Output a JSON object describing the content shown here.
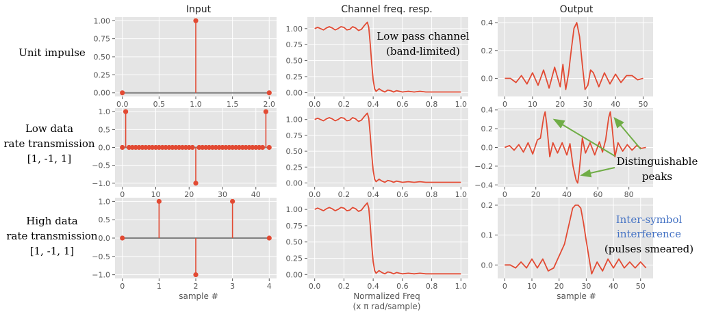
{
  "columns": {
    "input": "Input",
    "channel": "Channel freq. resp.",
    "output": "Output"
  },
  "rows": [
    {
      "label": [
        "Unit impulse"
      ]
    },
    {
      "label": [
        "Low data",
        "rate transmission",
        "[1, -1, 1]"
      ]
    },
    {
      "label": [
        "High data",
        "rate transmission",
        "[1, -1, 1]"
      ]
    }
  ],
  "xlabels": {
    "input": "sample #",
    "channel": [
      "Normalized Freq",
      "(x π rad/sample)"
    ],
    "output": "sample #"
  },
  "annotations": {
    "lowpass": [
      "Low pass channel",
      "(band-limited)"
    ],
    "peaks": [
      "Distinguishable",
      "peaks"
    ],
    "isi": [
      "Inter-symbol",
      "interference"
    ],
    "smeared": "(pulses smeared)"
  },
  "colors": {
    "line": "#e24a33",
    "baseline": "#808080",
    "panel": "#e5e5e5",
    "grid": "#ffffff",
    "arrow": "#70ad47",
    "isi_text": "#4472c4"
  },
  "chart_data": [
    {
      "type": "stem",
      "row": 0,
      "col": 0,
      "x": [
        0,
        1,
        2
      ],
      "y": [
        0,
        1,
        0
      ],
      "xlim": [
        -0.1,
        2.1
      ],
      "ylim": [
        -0.05,
        1.05
      ],
      "xticks": [
        0.0,
        0.5,
        1.0,
        1.5,
        2.0
      ],
      "xtick_labels": [
        "0.0",
        "0.5",
        "1.0",
        "1.5",
        "2.0"
      ],
      "yticks": [
        0.0,
        0.25,
        0.5,
        0.75,
        1.0
      ],
      "ytick_labels": [
        "0.00",
        "0.25",
        "0.50",
        "0.75",
        "1.00"
      ]
    },
    {
      "type": "stem",
      "row": 1,
      "col": 0,
      "x": [
        0,
        1,
        2,
        3,
        4,
        5,
        6,
        7,
        8,
        9,
        10,
        11,
        12,
        13,
        14,
        15,
        16,
        17,
        18,
        19,
        20,
        21,
        22,
        23,
        24,
        25,
        26,
        27,
        28,
        29,
        30,
        31,
        32,
        33,
        34,
        35,
        36,
        37,
        38,
        39,
        40,
        41,
        42,
        43,
        44
      ],
      "y": [
        0,
        1,
        0,
        0,
        0,
        0,
        0,
        0,
        0,
        0,
        0,
        0,
        0,
        0,
        0,
        0,
        0,
        0,
        0,
        0,
        0,
        0,
        -1,
        0,
        0,
        0,
        0,
        0,
        0,
        0,
        0,
        0,
        0,
        0,
        0,
        0,
        0,
        0,
        0,
        0,
        0,
        0,
        0,
        1,
        0
      ],
      "xlim": [
        -2.2,
        46.2
      ],
      "ylim": [
        -1.1,
        1.1
      ],
      "xticks": [
        0,
        10,
        20,
        30,
        40
      ],
      "xtick_labels": [
        "0",
        "10",
        "20",
        "30",
        "40"
      ],
      "yticks": [
        -1.0,
        -0.5,
        0.0,
        0.5,
        1.0
      ],
      "ytick_labels": [
        "−1.0",
        "−0.5",
        "0.0",
        "0.5",
        "1.0"
      ]
    },
    {
      "type": "stem",
      "row": 2,
      "col": 0,
      "x": [
        0,
        1,
        2,
        3,
        4
      ],
      "y": [
        0,
        1,
        -1,
        1,
        0
      ],
      "xlim": [
        -0.2,
        4.2
      ],
      "ylim": [
        -1.1,
        1.1
      ],
      "xticks": [
        0,
        1,
        2,
        3,
        4
      ],
      "xtick_labels": [
        "0",
        "1",
        "2",
        "3",
        "4"
      ],
      "yticks": [
        -1.0,
        -0.5,
        0.0,
        0.5,
        1.0
      ],
      "ytick_labels": [
        "−1.0",
        "−0.5",
        "0.0",
        "0.5",
        "1.0"
      ]
    },
    {
      "type": "line",
      "row": 0,
      "col": 1,
      "x": [
        0,
        0.02,
        0.04,
        0.06,
        0.08,
        0.1,
        0.12,
        0.14,
        0.16,
        0.18,
        0.2,
        0.22,
        0.24,
        0.26,
        0.28,
        0.3,
        0.32,
        0.34,
        0.36,
        0.37,
        0.38,
        0.39,
        0.4,
        0.41,
        0.42,
        0.44,
        0.46,
        0.48,
        0.5,
        0.52,
        0.54,
        0.56,
        0.58,
        0.6,
        0.64,
        0.68,
        0.72,
        0.76,
        0.8,
        0.84,
        0.88,
        0.92,
        0.96,
        1.0
      ],
      "y": [
        1.0,
        1.02,
        1.0,
        0.98,
        1.01,
        1.03,
        1.01,
        0.98,
        1.0,
        1.03,
        1.02,
        0.98,
        0.99,
        1.03,
        1.01,
        0.97,
        0.99,
        1.05,
        1.1,
        1.02,
        0.75,
        0.45,
        0.2,
        0.06,
        0.02,
        0.06,
        0.03,
        0.01,
        0.04,
        0.03,
        0.01,
        0.03,
        0.02,
        0.01,
        0.02,
        0.01,
        0.02,
        0.01,
        0.01,
        0.01,
        0.01,
        0.01,
        0.01,
        0.01
      ],
      "xlim": [
        -0.05,
        1.05
      ],
      "ylim": [
        -0.06,
        1.18
      ],
      "xticks": [
        0.0,
        0.2,
        0.4,
        0.6,
        0.8,
        1.0
      ],
      "xtick_labels": [
        "0.0",
        "0.2",
        "0.4",
        "0.6",
        "0.8",
        "1.0"
      ],
      "yticks": [
        0.0,
        0.25,
        0.5,
        0.75,
        1.0
      ],
      "ytick_labels": [
        "0.00",
        "0.25",
        "0.50",
        "0.75",
        "1.00"
      ]
    },
    {
      "type": "line",
      "row": 1,
      "col": 1,
      "x": [
        0,
        0.02,
        0.04,
        0.06,
        0.08,
        0.1,
        0.12,
        0.14,
        0.16,
        0.18,
        0.2,
        0.22,
        0.24,
        0.26,
        0.28,
        0.3,
        0.32,
        0.34,
        0.36,
        0.37,
        0.38,
        0.39,
        0.4,
        0.41,
        0.42,
        0.44,
        0.46,
        0.48,
        0.5,
        0.52,
        0.54,
        0.56,
        0.58,
        0.6,
        0.64,
        0.68,
        0.72,
        0.76,
        0.8,
        0.84,
        0.88,
        0.92,
        0.96,
        1.0
      ],
      "y": [
        1.0,
        1.02,
        1.0,
        0.98,
        1.01,
        1.03,
        1.01,
        0.98,
        1.0,
        1.03,
        1.02,
        0.98,
        0.99,
        1.03,
        1.01,
        0.97,
        0.99,
        1.05,
        1.1,
        1.02,
        0.75,
        0.45,
        0.2,
        0.06,
        0.02,
        0.06,
        0.03,
        0.01,
        0.04,
        0.03,
        0.01,
        0.03,
        0.02,
        0.01,
        0.02,
        0.01,
        0.02,
        0.01,
        0.01,
        0.01,
        0.01,
        0.01,
        0.01,
        0.01
      ],
      "xlim": [
        -0.05,
        1.05
      ],
      "ylim": [
        -0.06,
        1.18
      ],
      "xticks": [
        0.0,
        0.2,
        0.4,
        0.6,
        0.8,
        1.0
      ],
      "xtick_labels": [
        "0.0",
        "0.2",
        "0.4",
        "0.6",
        "0.8",
        "1.0"
      ],
      "yticks": [
        0.0,
        0.25,
        0.5,
        0.75,
        1.0
      ],
      "ytick_labels": [
        "0.00",
        "0.25",
        "0.50",
        "0.75",
        "1.00"
      ]
    },
    {
      "type": "line",
      "row": 2,
      "col": 1,
      "x": [
        0,
        0.02,
        0.04,
        0.06,
        0.08,
        0.1,
        0.12,
        0.14,
        0.16,
        0.18,
        0.2,
        0.22,
        0.24,
        0.26,
        0.28,
        0.3,
        0.32,
        0.34,
        0.36,
        0.37,
        0.38,
        0.39,
        0.4,
        0.41,
        0.42,
        0.44,
        0.46,
        0.48,
        0.5,
        0.52,
        0.54,
        0.56,
        0.58,
        0.6,
        0.64,
        0.68,
        0.72,
        0.76,
        0.8,
        0.84,
        0.88,
        0.92,
        0.96,
        1.0
      ],
      "y": [
        1.0,
        1.02,
        1.0,
        0.98,
        1.01,
        1.03,
        1.01,
        0.98,
        1.0,
        1.03,
        1.02,
        0.98,
        0.99,
        1.03,
        1.01,
        0.97,
        0.99,
        1.05,
        1.1,
        1.02,
        0.75,
        0.45,
        0.2,
        0.06,
        0.02,
        0.06,
        0.03,
        0.01,
        0.04,
        0.03,
        0.01,
        0.03,
        0.02,
        0.01,
        0.02,
        0.01,
        0.02,
        0.01,
        0.01,
        0.01,
        0.01,
        0.01,
        0.01,
        0.01
      ],
      "xlim": [
        -0.05,
        1.05
      ],
      "ylim": [
        -0.06,
        1.18
      ],
      "xticks": [
        0.0,
        0.2,
        0.4,
        0.6,
        0.8,
        1.0
      ],
      "xtick_labels": [
        "0.0",
        "0.2",
        "0.4",
        "0.6",
        "0.8",
        "1.0"
      ],
      "yticks": [
        0.0,
        0.25,
        0.5,
        0.75,
        1.0
      ],
      "ytick_labels": [
        "0.00",
        "0.25",
        "0.50",
        "0.75",
        "1.00"
      ]
    },
    {
      "type": "line",
      "row": 0,
      "col": 2,
      "x": [
        0,
        2,
        4,
        6,
        8,
        10,
        12,
        14,
        16,
        18,
        20,
        21,
        22,
        23,
        24,
        25,
        26,
        27,
        28,
        29,
        30,
        31,
        32,
        34,
        36,
        38,
        40,
        42,
        44,
        46,
        48,
        50
      ],
      "y": [
        0.0,
        0.0,
        -0.03,
        0.02,
        -0.04,
        0.04,
        -0.05,
        0.06,
        -0.07,
        0.08,
        -0.06,
        0.1,
        -0.08,
        0.03,
        0.2,
        0.36,
        0.4,
        0.3,
        0.1,
        -0.08,
        -0.05,
        0.06,
        0.04,
        -0.06,
        0.04,
        -0.04,
        0.03,
        -0.03,
        0.02,
        0.02,
        -0.01,
        0.0
      ],
      "xlim": [
        -2.6,
        53.6
      ],
      "ylim": [
        -0.13,
        0.44
      ],
      "xticks": [
        0,
        10,
        20,
        30,
        40,
        50
      ],
      "xtick_labels": [
        "0",
        "10",
        "20",
        "30",
        "40",
        "50"
      ],
      "yticks": [
        0.0,
        0.2,
        0.4
      ],
      "ytick_labels": [
        "0.0",
        "0.2",
        "0.4"
      ]
    },
    {
      "type": "line",
      "row": 1,
      "col": 2,
      "x": [
        0,
        3,
        6,
        9,
        12,
        15,
        18,
        21,
        23,
        25,
        26,
        27,
        29,
        31,
        34,
        37,
        40,
        42,
        44,
        46,
        47,
        48,
        50,
        52,
        55,
        58,
        61,
        63,
        65,
        67,
        68,
        69,
        71,
        73,
        76,
        79,
        82,
        85,
        88,
        91
      ],
      "y": [
        0.0,
        0.02,
        -0.03,
        0.03,
        -0.05,
        0.05,
        -0.07,
        0.08,
        0.1,
        0.32,
        0.38,
        0.25,
        -0.1,
        0.05,
        -0.06,
        0.05,
        -0.08,
        0.04,
        -0.2,
        -0.35,
        -0.38,
        -0.25,
        0.1,
        -0.06,
        0.05,
        -0.08,
        0.06,
        -0.05,
        0.08,
        0.32,
        0.38,
        0.25,
        -0.1,
        0.05,
        -0.04,
        0.03,
        -0.03,
        0.02,
        -0.01,
        0.0
      ],
      "xlim": [
        -4.6,
        95.6
      ],
      "ylim": [
        -0.42,
        0.42
      ],
      "xticks": [
        0,
        20,
        40,
        60,
        80
      ],
      "xtick_labels": [
        "0",
        "20",
        "40",
        "60",
        "80"
      ],
      "yticks": [
        -0.4,
        -0.2,
        0.0,
        0.2,
        0.4
      ],
      "ytick_labels": [
        "−0.4",
        "−0.2",
        "0.0",
        "0.2",
        "0.4"
      ]
    },
    {
      "type": "line",
      "row": 2,
      "col": 2,
      "x": [
        0,
        2,
        4,
        6,
        8,
        10,
        12,
        14,
        16,
        18,
        20,
        22,
        24,
        25,
        26,
        27,
        28,
        29,
        30,
        32,
        34,
        36,
        38,
        40,
        42,
        44,
        46,
        48,
        50,
        52
      ],
      "y": [
        0.0,
        0.0,
        -0.01,
        0.01,
        -0.01,
        0.02,
        -0.01,
        0.02,
        -0.02,
        -0.01,
        0.03,
        0.07,
        0.15,
        0.19,
        0.2,
        0.2,
        0.19,
        0.14,
        0.08,
        -0.03,
        0.01,
        -0.02,
        0.02,
        -0.01,
        0.02,
        -0.01,
        0.01,
        -0.01,
        0.01,
        -0.01
      ],
      "xlim": [
        -2.6,
        54.6
      ],
      "ylim": [
        -0.045,
        0.225
      ],
      "xticks": [
        0,
        10,
        20,
        30,
        40,
        50
      ],
      "xtick_labels": [
        "0",
        "10",
        "20",
        "30",
        "40",
        "50"
      ],
      "yticks": [
        0.0,
        0.1,
        0.2
      ],
      "ytick_labels": [
        "0.0",
        "0.1",
        "0.2"
      ]
    }
  ]
}
